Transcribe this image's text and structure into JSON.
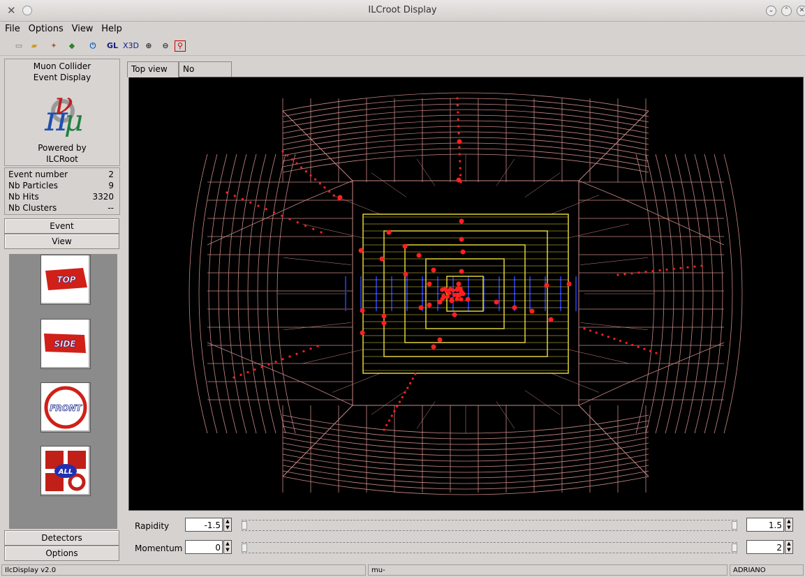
{
  "window": {
    "title": "ILCroot Display"
  },
  "menu": [
    "File",
    "Options",
    "View",
    "Help"
  ],
  "toolbar_icons": [
    "open-file-icon",
    "open-folder-icon",
    "wizard-icon",
    "layers-icon",
    "power-icon",
    "GL",
    "X3D",
    "zoom-in-icon",
    "zoom-out-icon",
    "zoom-reset-icon"
  ],
  "toolbar_text": {
    "gl": "GL",
    "x3d": "X3D"
  },
  "logo": {
    "line1": "Muon Collider",
    "line2": "Event Display",
    "powered1": "Powered by",
    "powered2": "ILCRoot"
  },
  "event_info": [
    {
      "label": "Event number",
      "value": "2"
    },
    {
      "label": "Nb Particles",
      "value": "9"
    },
    {
      "label": "Nb Hits",
      "value": "3320"
    },
    {
      "label": "Nb Clusters",
      "value": "--"
    }
  ],
  "panel_buttons": {
    "event": "Event",
    "view": "View",
    "detectors": "Detectors",
    "options": "Options"
  },
  "view_buttons": {
    "top": "TOP",
    "side": "SIDE",
    "front": "FRONT",
    "all": "ALL"
  },
  "tabs": [
    "Top view",
    "No detector"
  ],
  "controls": {
    "rapidity": {
      "label": "Rapidity",
      "min": "-1.5",
      "max": "1.5"
    },
    "momentum": {
      "label": "Momentum",
      "min": "0",
      "max": "2"
    }
  },
  "status": {
    "left": "IlcDisplay v2.0",
    "middle": "mu-",
    "right": "ADRIANO"
  },
  "colors": {
    "wireframe": "#c98a86",
    "tracker": "#f0e040",
    "hits": "#ff2020",
    "blue_layers": "#2030c0"
  }
}
